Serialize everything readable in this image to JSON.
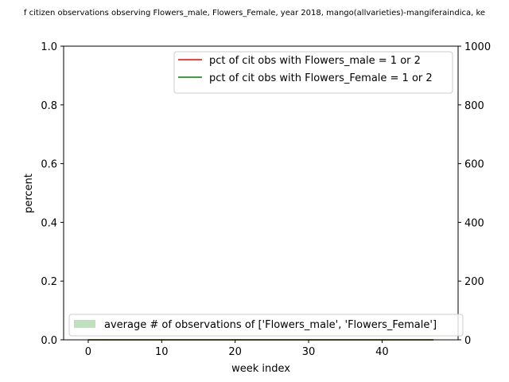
{
  "chart_data": {
    "type": "line",
    "title": "f citizen observations observing Flowers_male, Flowers_Female, year 2018, mango(allvarieties)-mangiferaindica, ke",
    "xlabel": "week index",
    "ylabel": "percent",
    "xlim": [
      -3.35,
      50.35
    ],
    "ylim": [
      0.0,
      1.0
    ],
    "y2lim": [
      0,
      1000
    ],
    "x_ticks": [
      0,
      10,
      20,
      30,
      40
    ],
    "y_ticks": [
      0.0,
      0.2,
      0.4,
      0.6,
      0.8,
      1.0
    ],
    "y_tick_labels": [
      "0.0",
      "0.2",
      "0.4",
      "0.6",
      "0.8",
      "1.0"
    ],
    "y2_ticks": [
      0,
      200,
      400,
      600,
      800,
      1000
    ],
    "x": [
      0,
      47
    ],
    "series": [
      {
        "name": "pct of cit obs with Flowers_male = 1 or 2",
        "color": "#ff0000",
        "values": [
          0,
          0
        ],
        "axis": "left",
        "kind": "line"
      },
      {
        "name": "pct of cit obs with Flowers_Female = 1 or 2",
        "color": "#008000",
        "values": [
          0,
          0
        ],
        "axis": "left",
        "kind": "line"
      },
      {
        "name": "average # of observations of ['Flowers_male', 'Flowers_Female']",
        "color": "#bfdfbf",
        "values": [
          0,
          0
        ],
        "axis": "right",
        "kind": "area"
      }
    ],
    "legend_upper_placement": "top-right",
    "legend_lower_placement": "bottom-left",
    "grid": false
  }
}
